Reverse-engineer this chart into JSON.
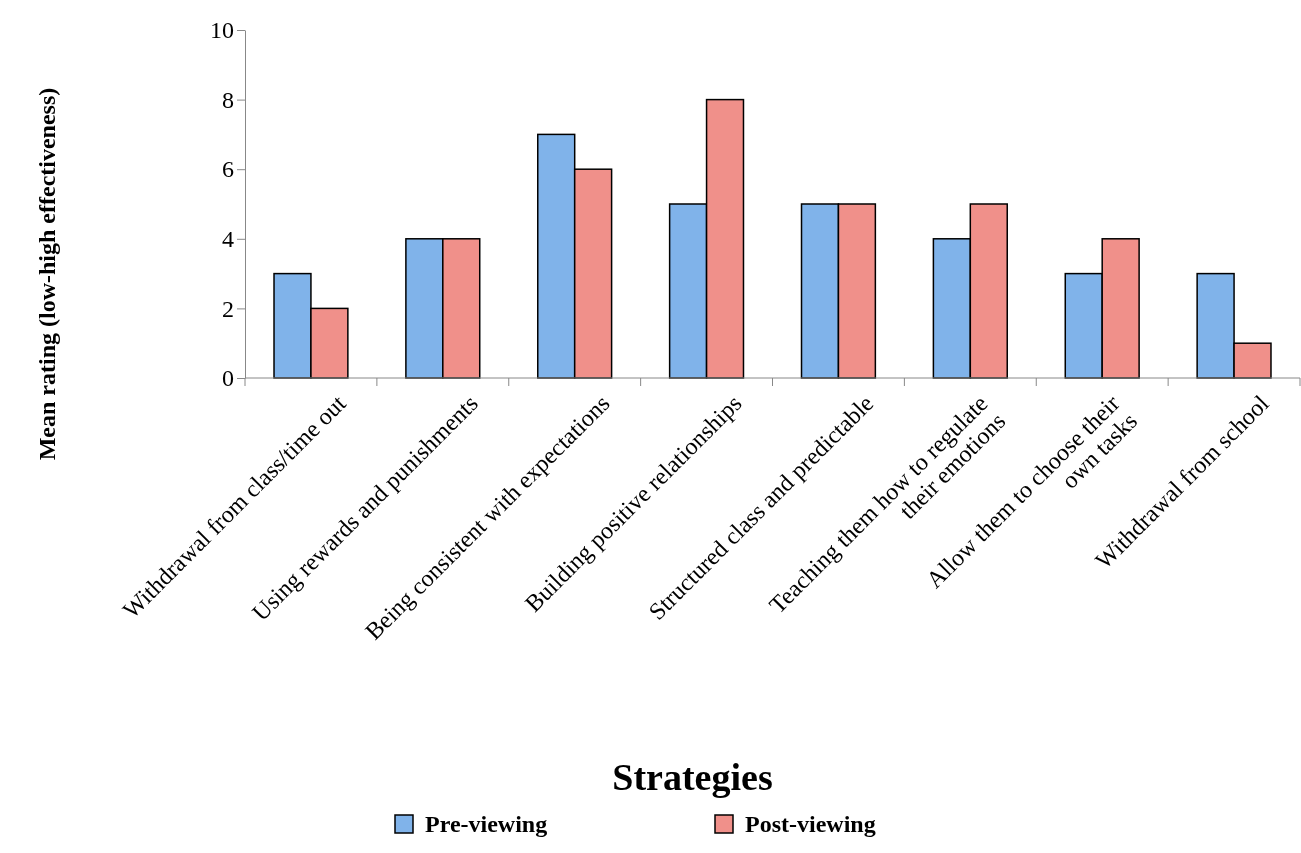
{
  "chart_data": {
    "type": "bar",
    "xlabel": "Strategies",
    "ylabel": "Mean rating (low-high effectiveness)",
    "categories": [
      "Withdrawal from class/time out",
      "Using rewards and punishments",
      "Being consistent with expectations",
      "Building positive relationships",
      "Structured class and predictable",
      "Teaching them how to regulate\ntheir emotions",
      "Allow them to choose their\nown tasks",
      "Withdrawal from school"
    ],
    "series": [
      {
        "name": "Pre-viewing",
        "color": "#80b3ea",
        "values": [
          3,
          4,
          7,
          5,
          5,
          4,
          3,
          3
        ]
      },
      {
        "name": "Post-viewing",
        "color": "#f0908a",
        "values": [
          2,
          4,
          6,
          8,
          5,
          5,
          4,
          1
        ]
      }
    ],
    "ylim": [
      0,
      10
    ],
    "yticks": [
      0,
      2,
      4,
      6,
      8,
      10
    ],
    "grid": false,
    "legend": "bottom"
  }
}
